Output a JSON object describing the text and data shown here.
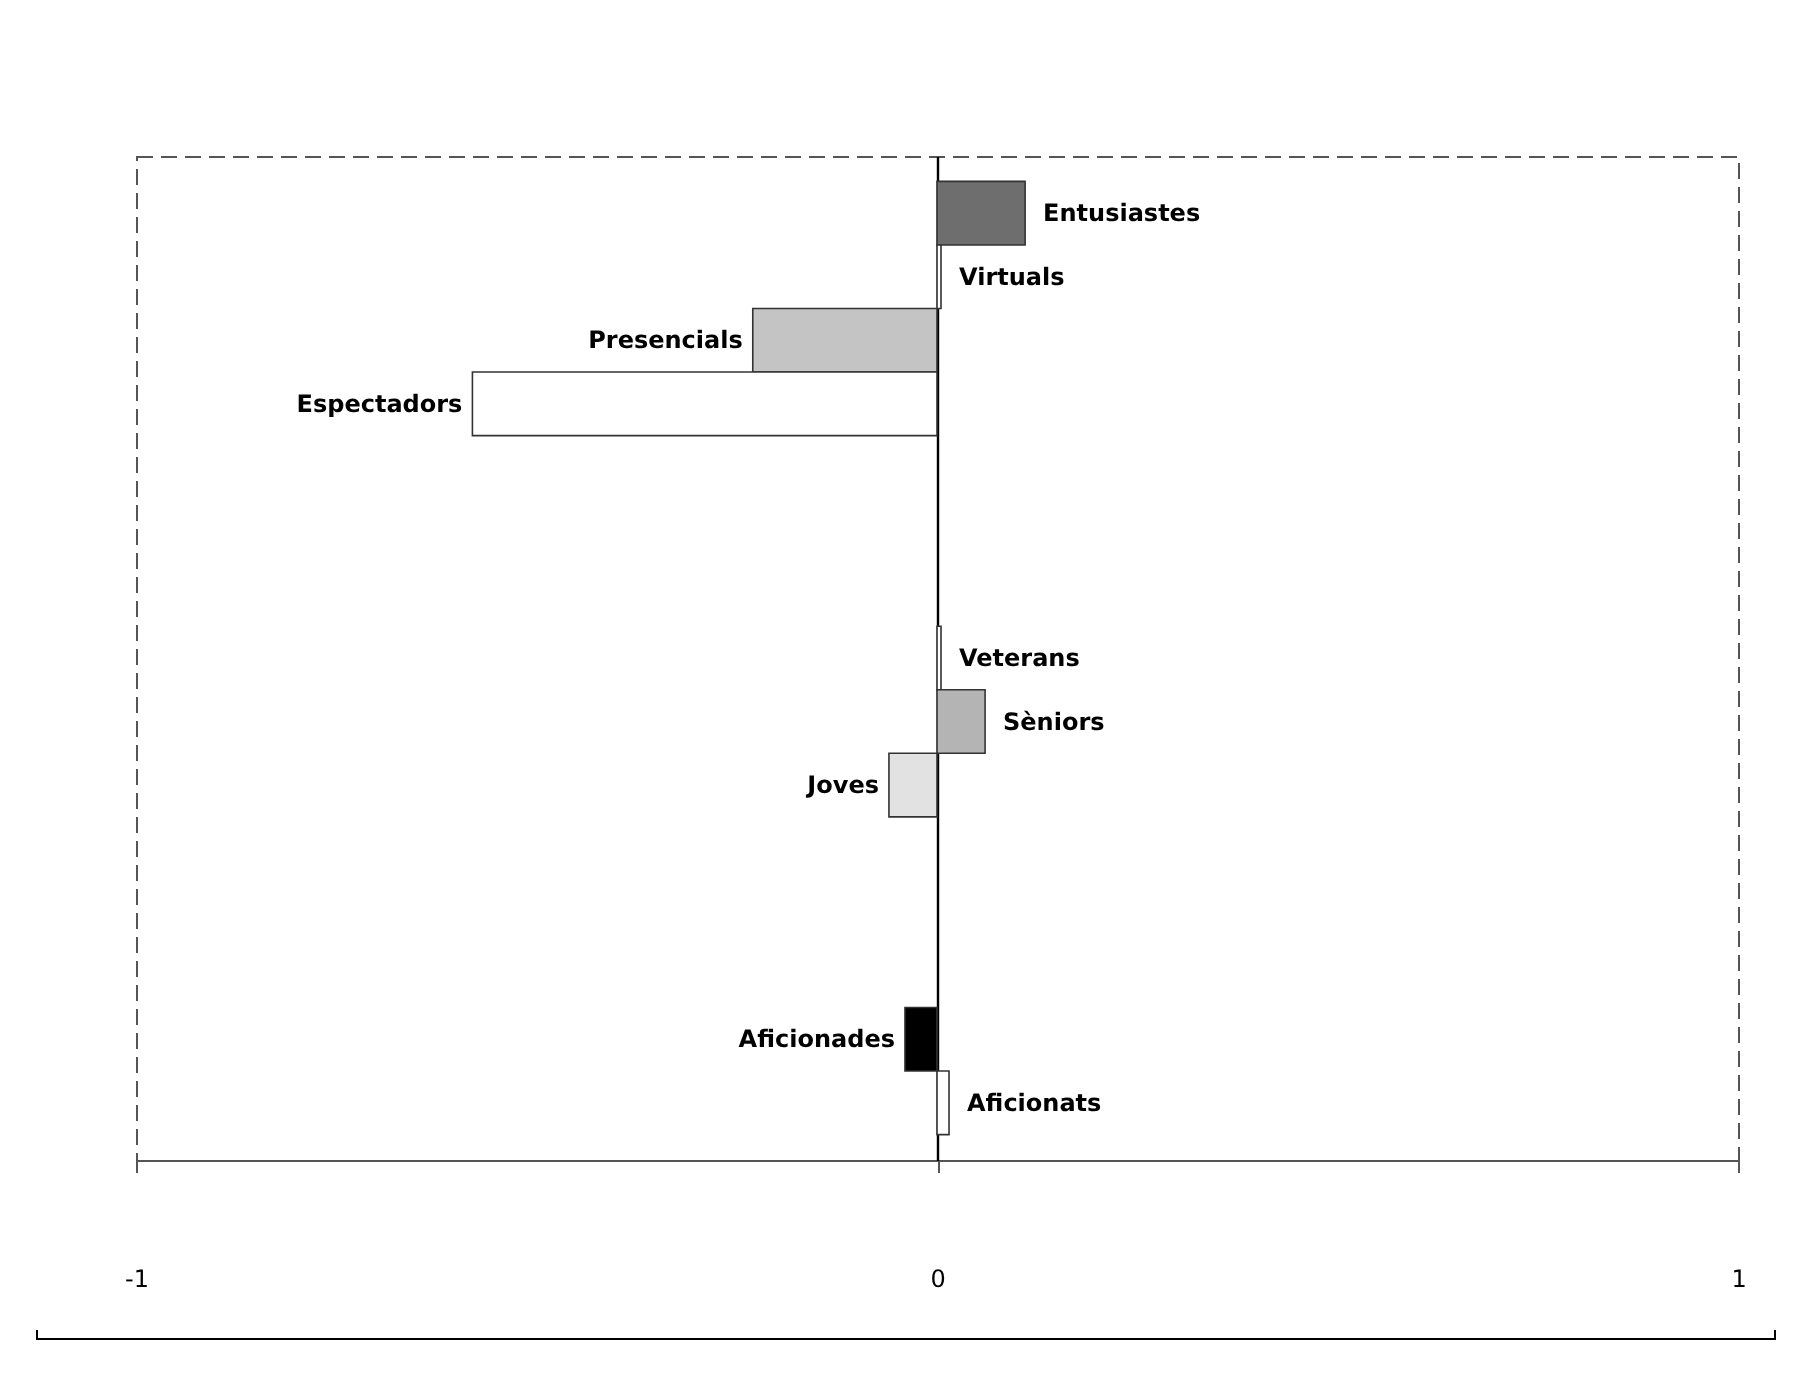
{
  "chart_data": {
    "type": "bar",
    "orientation": "horizontal",
    "categories": [
      "Entusiastes",
      "Virtuals",
      "Presencials",
      "Espectadors",
      null,
      null,
      null,
      "Veterans",
      "Sèniors",
      "Joves",
      null,
      null,
      null,
      "Aficionades",
      "Aficionats"
    ],
    "values": [
      0.11,
      0.005,
      -0.23,
      -0.58,
      null,
      null,
      null,
      0.005,
      0.06,
      -0.06,
      null,
      null,
      null,
      -0.04,
      0.015
    ],
    "colors": [
      "#6e6e6e",
      "#ffffff",
      "#c4c4c4",
      "#ffffff",
      null,
      null,
      null,
      "#ffffff",
      "#b4b4b4",
      "#e2e2e2",
      null,
      null,
      null,
      "#000000",
      "#ffffff"
    ],
    "xlim": [
      -1,
      1
    ],
    "xticks": [
      -1,
      0,
      1
    ],
    "tick_labels": "x",
    "grid": false
  }
}
